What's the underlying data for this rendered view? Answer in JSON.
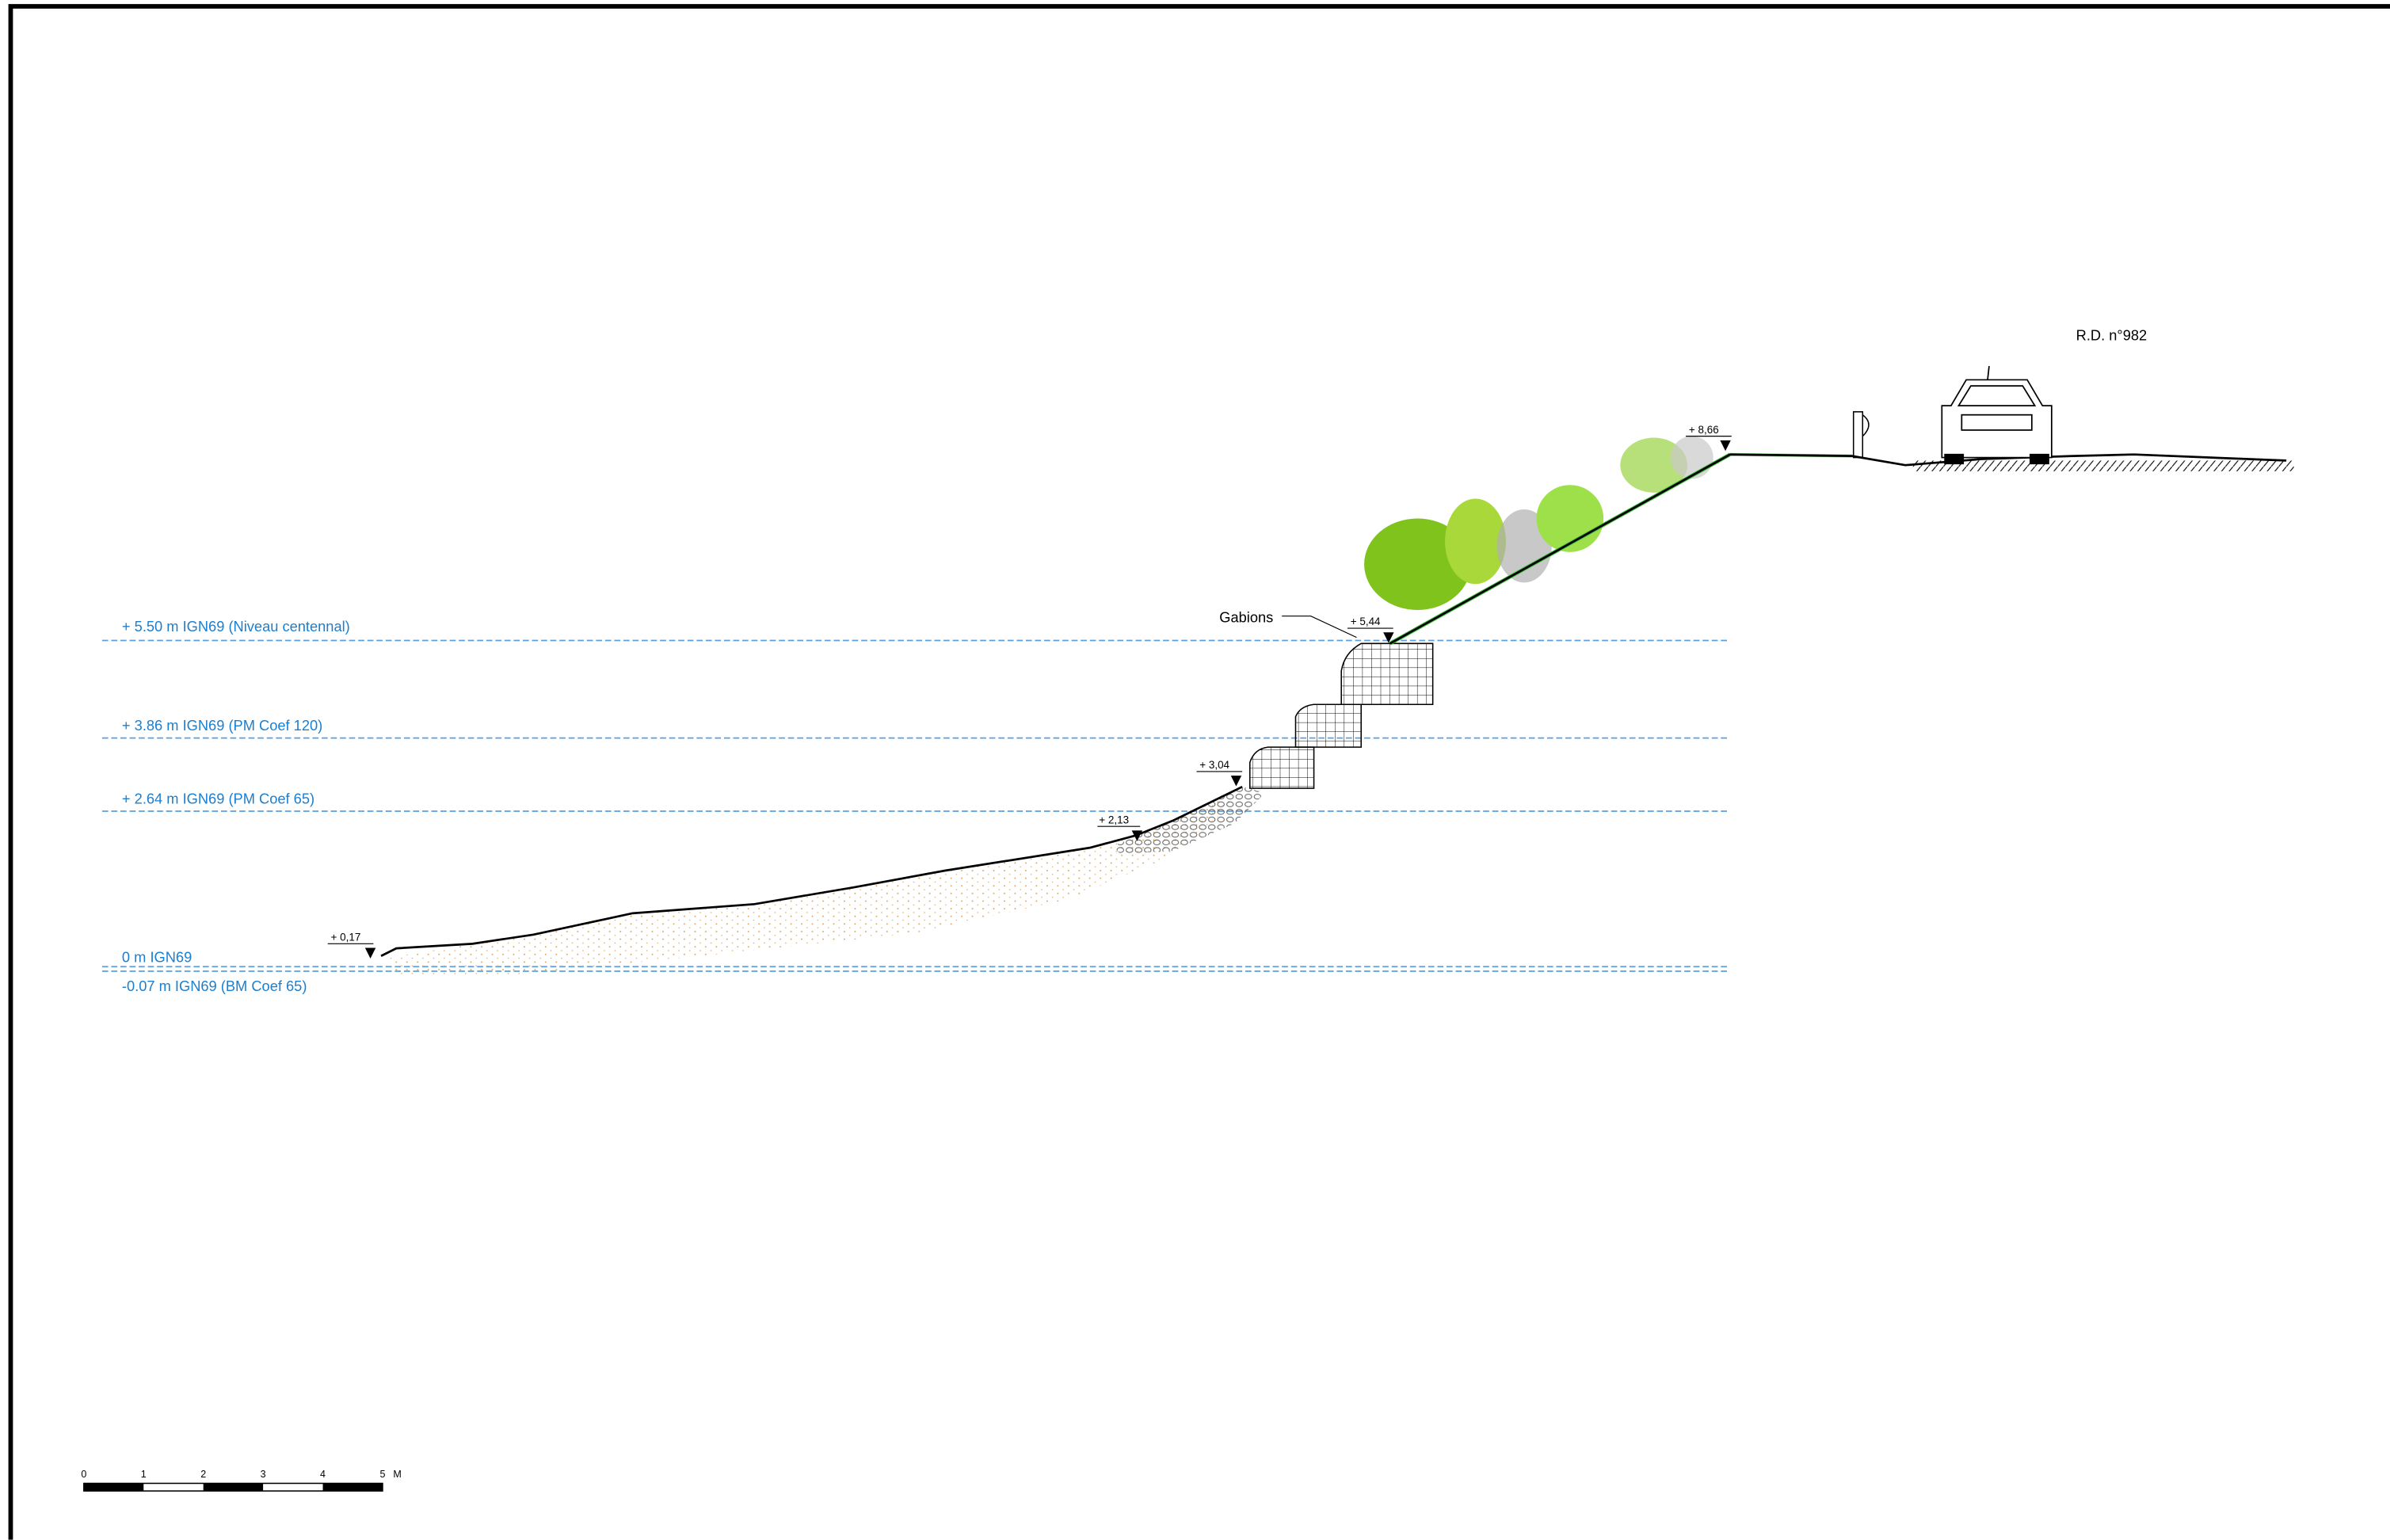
{
  "water_levels": [
    {
      "label": "+ 5.50 m IGN69 (Niveau centennal)"
    },
    {
      "label": "+ 3.86 m IGN69 (PM Coef 120)"
    },
    {
      "label": "+ 2.64 m IGN69 (PM Coef 65)"
    },
    {
      "label": "0 m IGN69"
    },
    {
      "label": "-0.07 m IGN69 (BM Coef 65)"
    }
  ],
  "elevations": [
    "+ 0,17",
    "+ 2,13",
    "+ 3,04",
    "+ 5,44",
    "+ 8,66"
  ],
  "gabions_label": "Gabions",
  "road_label": "R.D. n°982",
  "scale_bar": {
    "ticks": [
      "0",
      "1",
      "2",
      "3",
      "4",
      "5"
    ],
    "unit": "M"
  }
}
